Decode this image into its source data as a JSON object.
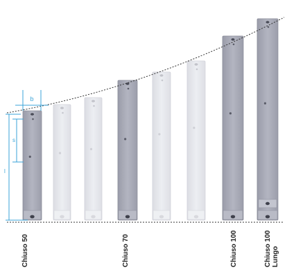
{
  "dimension_markers": {
    "width": "b",
    "spacing": "s",
    "length": "l"
  },
  "labels": [
    {
      "line1": "Chiuso 50",
      "line2": ""
    },
    {
      "line1": "Chiuso 70",
      "line2": ""
    },
    {
      "line1": "Chiuso 100",
      "line2": ""
    },
    {
      "line1": "Chiuso 100",
      "line2": "Lungo"
    }
  ],
  "colors": {
    "dim_line": "#3aa3d8",
    "dark_slat": "#a7a9b6",
    "light_slat": "#e4e5ea",
    "guide": "#333333"
  }
}
